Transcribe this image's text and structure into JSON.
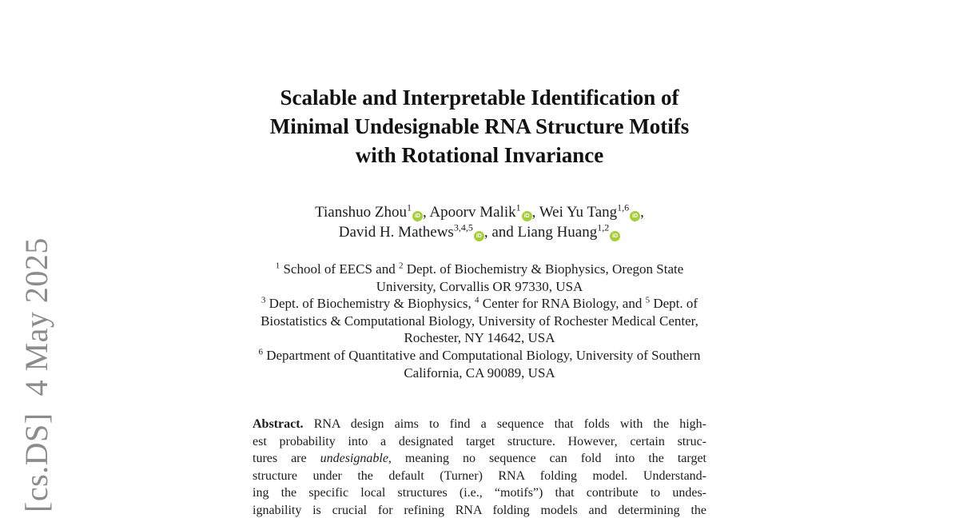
{
  "watermark": {
    "text": "[cs.DS]  4 May 2025",
    "color": "#8c8c8c"
  },
  "title": {
    "lines": [
      "Scalable and Interpretable Identification of",
      "Minimal Undesignable RNA Structure Motifs",
      "with Rotational Invariance"
    ]
  },
  "authors": {
    "orcid_color": "#a6ce39",
    "orcid_label": "iD",
    "lines": [
      [
        {
          "t": "Tianshuo Zhou"
        },
        {
          "sup": "1"
        },
        {
          "orcid": true
        },
        {
          "t": ", Apoorv Malik"
        },
        {
          "sup": "1"
        },
        {
          "orcid": true
        },
        {
          "t": ", Wei Yu Tang"
        },
        {
          "sup": "1,6"
        },
        {
          "orcid": true
        },
        {
          "t": ","
        }
      ],
      [
        {
          "t": "David H. Mathews"
        },
        {
          "sup": "3,4,5"
        },
        {
          "orcid": true
        },
        {
          "t": ", and Liang Huang"
        },
        {
          "sup": "1,2"
        },
        {
          "orcid": true
        }
      ]
    ]
  },
  "affiliations": {
    "lines": [
      [
        {
          "sup": "1"
        },
        {
          "t": " School of EECS and "
        },
        {
          "sup": "2"
        },
        {
          "t": " Dept. of Biochemistry & Biophysics, Oregon State"
        }
      ],
      [
        {
          "t": "University, Corvallis OR 97330, USA"
        }
      ],
      [
        {
          "sup": "3"
        },
        {
          "t": " Dept. of Biochemistry & Biophysics, "
        },
        {
          "sup": "4"
        },
        {
          "t": " Center for RNA Biology, and "
        },
        {
          "sup": "5"
        },
        {
          "t": " Dept. of"
        }
      ],
      [
        {
          "t": "Biostatistics & Computational Biology, University of Rochester Medical Center,"
        }
      ],
      [
        {
          "t": "Rochester, NY 14642, USA"
        }
      ],
      [
        {
          "sup": "6"
        },
        {
          "t": " Department of Quantitative and Computational Biology, University of Southern"
        }
      ],
      [
        {
          "t": "California, CA 90089, USA"
        }
      ]
    ]
  },
  "abstract": {
    "lines": [
      [
        {
          "t": "Abstract. ",
          "b": true
        },
        {
          "t": "RNA design aims to find a sequence that folds with the high-"
        }
      ],
      [
        {
          "t": "est probability into a designated target structure. However, certain struc-"
        }
      ],
      [
        {
          "t": "tures are "
        },
        {
          "t": "undesignable",
          "i": true
        },
        {
          "t": ", meaning no sequence can fold into the target"
        }
      ],
      [
        {
          "t": "structure under the default (Turner) RNA folding model. Understand-"
        }
      ],
      [
        {
          "t": "ing the specific local structures (i.e., “motifs”) that contribute to undes-"
        }
      ],
      [
        {
          "t": "ignability is crucial for refining RNA folding models and determining the"
        }
      ]
    ]
  }
}
